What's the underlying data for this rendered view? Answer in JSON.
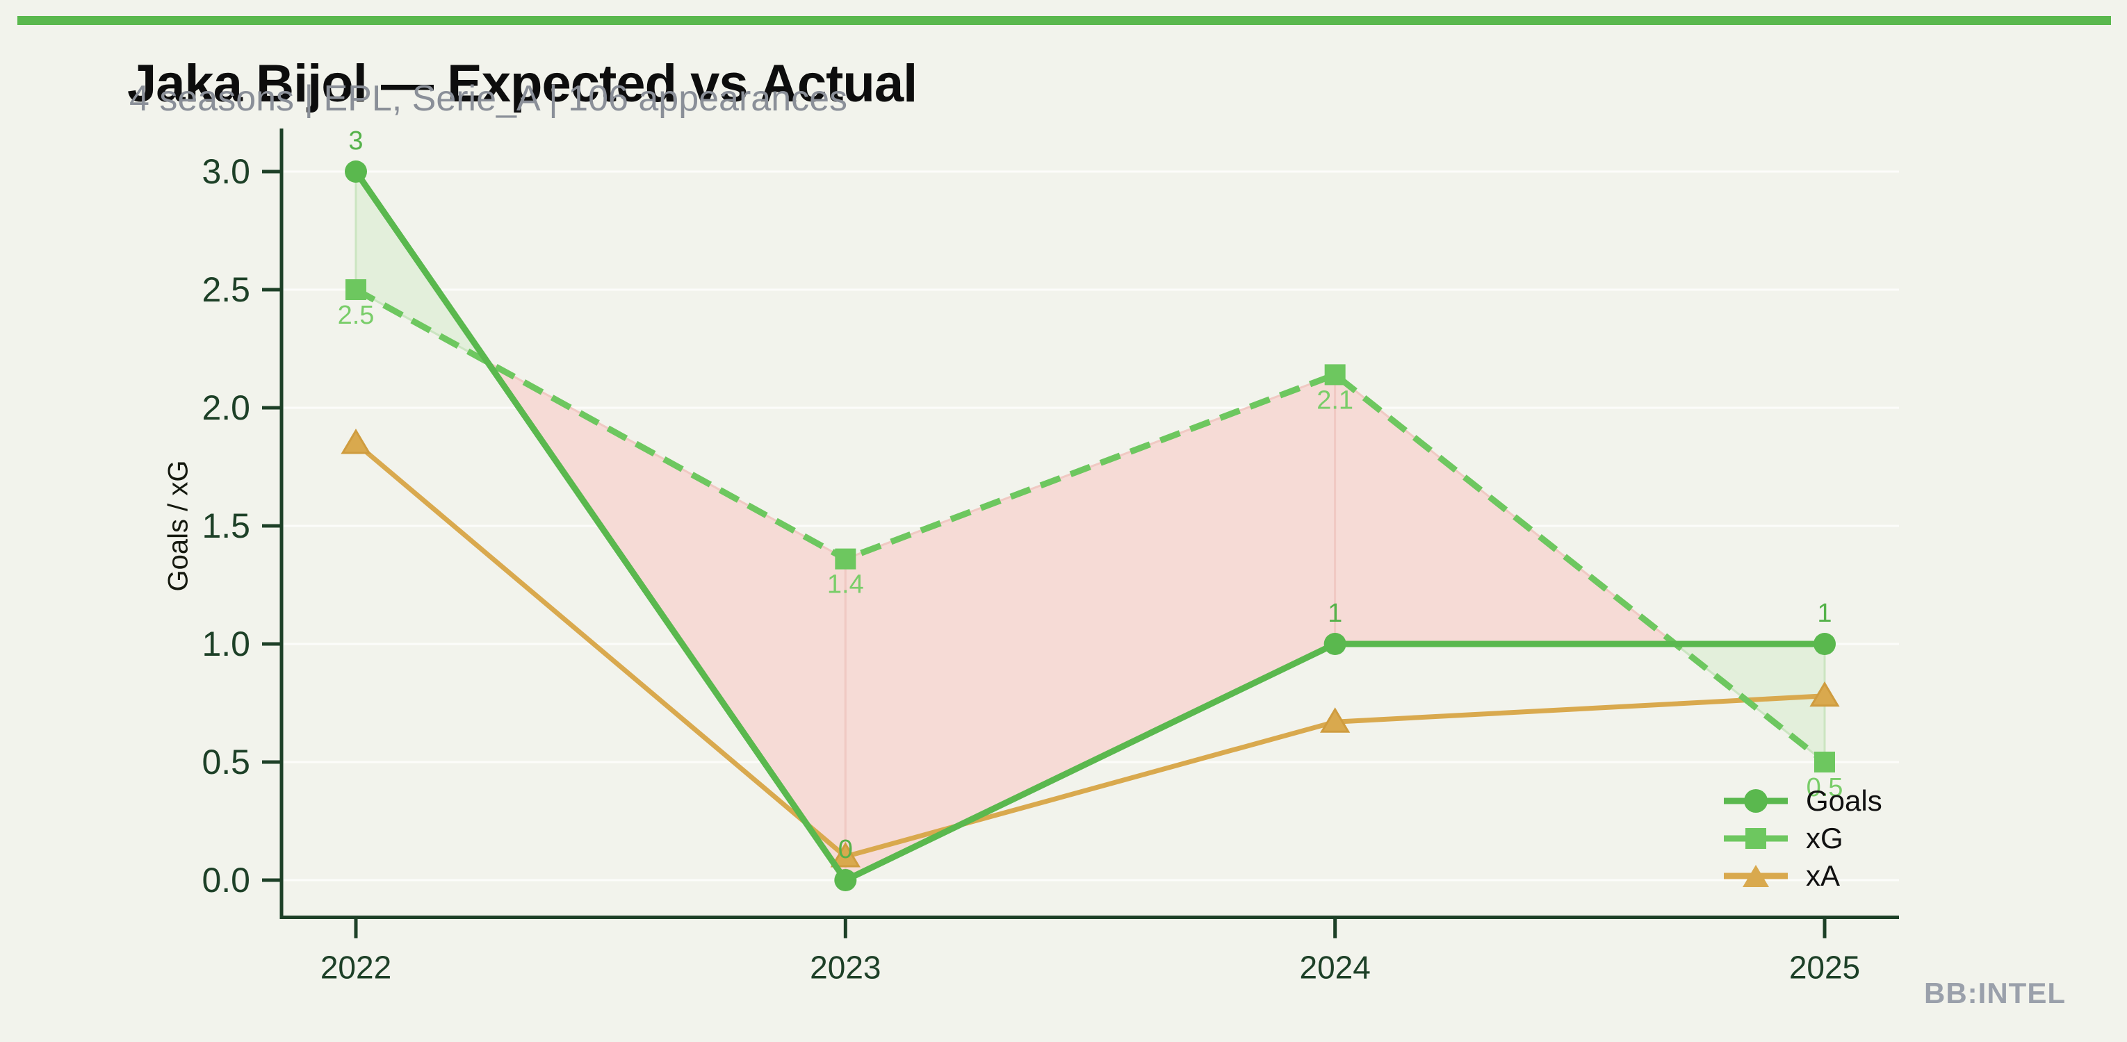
{
  "page": {
    "title": "Jaka Bijol — Expected vs Actual",
    "subtitle": "4 seasons | EPL, Serie_A | 106 appearances",
    "watermark": "BB:INTEL",
    "background_color": "#f2f3ec",
    "accent_bar_color": "#5ab84e"
  },
  "chart_data": {
    "type": "line",
    "title": "Jaka Bijol — Expected vs Actual",
    "subtitle": "4 seasons | EPL, Serie_A | 106 appearances",
    "xlabel": "",
    "ylabel": "Goals / xG",
    "categories": [
      "2022",
      "2023",
      "2024",
      "2025"
    ],
    "ylim": [
      0,
      3
    ],
    "yticks": [
      0.0,
      0.5,
      1.0,
      1.5,
      2.0,
      2.5,
      3.0
    ],
    "ytick_labels": [
      "0.0",
      "0.5",
      "1.0",
      "1.5",
      "2.0",
      "2.5",
      "3.0"
    ],
    "grid": "horizontal",
    "legend_position": "lower-right",
    "axis_color": "#1d4027",
    "tick_label_color": "#1d4027",
    "grid_color": "#ffffff",
    "series": [
      {
        "name": "Goals",
        "line_style": "solid",
        "line_width": 9,
        "marker": "circle",
        "color": "#5ab84e",
        "label_color": "#55b24a",
        "values": [
          3,
          0,
          1,
          1
        ],
        "point_labels": [
          "3",
          "0",
          "1",
          "1"
        ]
      },
      {
        "name": "xG",
        "line_style": "dashed",
        "line_width": 9,
        "marker": "square",
        "color": "#6dc75f",
        "label_color": "#79cd69",
        "values": [
          2.5,
          1.36,
          2.14,
          0.5
        ],
        "point_labels": [
          "2.5",
          "1.4",
          "2.1",
          "0.5"
        ]
      },
      {
        "name": "xA",
        "line_style": "solid",
        "line_width": 7,
        "marker": "triangle",
        "color": "#d9a94e",
        "marker_edge": "#cf9c3f",
        "values": [
          1.85,
          0.1,
          0.67,
          0.78
        ],
        "point_labels": []
      }
    ],
    "fill_between": {
      "upper": "Goals",
      "lower": "xG",
      "positive_color": "#e3efdb",
      "positive_edge": "#cbe5c1",
      "negative_color": "#f6dbd6",
      "negative_edge": "#f0c9c3"
    }
  }
}
